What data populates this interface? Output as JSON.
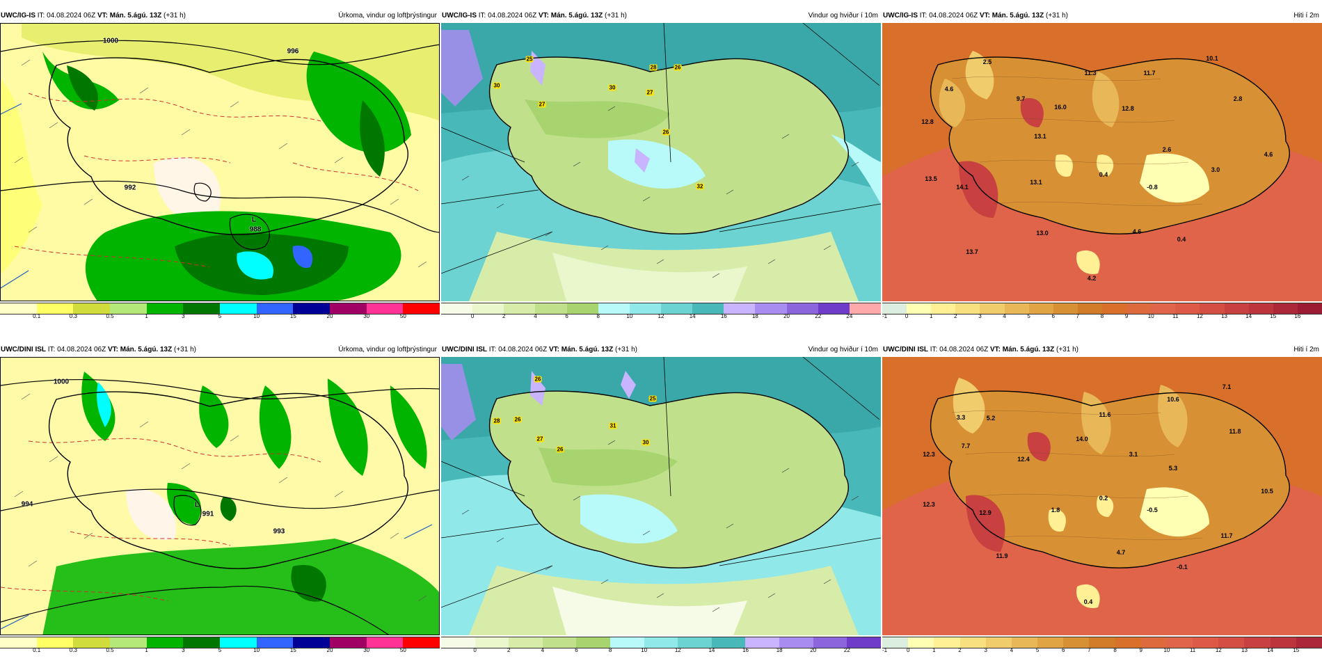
{
  "rows": [
    {
      "model": "UWC/IG-IS",
      "panels": [
        {
          "it_label": "IT:",
          "it_value": "04.08.2024 06Z",
          "vt_label": "VT:",
          "vt_value": "Mán. 5.ágú. 13Z",
          "offset": "(+31 h)",
          "title": "Úrkoma, vindur og loftþrýstingur",
          "legend": [
            "0.1",
            "0.3",
            "0.5",
            "1",
            "3",
            "5",
            "10",
            "15",
            "20",
            "30",
            "50"
          ],
          "colors": [
            "#ffffc8",
            "#ffff66",
            "#d0dc3c",
            "#b4e878",
            "#00b400",
            "#007800",
            "#00ffff",
            "#3264ff",
            "#000096",
            "#a00064",
            "#ff3296",
            "#ff0000"
          ],
          "labels": [
            {
              "t": "1000"
            },
            {
              "t": "992"
            },
            {
              "t": "988"
            },
            {
              "t": "L"
            },
            {
              "t": "996"
            }
          ]
        },
        {
          "it_label": "IT:",
          "it_value": "04.08.2024 06Z",
          "vt_label": "VT:",
          "vt_value": "Mán. 5.ágú. 13Z",
          "offset": "(+31 h)",
          "title": "Vindur og hviður í 10m",
          "legend": [
            "0",
            "2",
            "4",
            "6",
            "8",
            "10",
            "12",
            "14",
            "16",
            "18",
            "20",
            "22",
            "24"
          ],
          "colors": [
            "#f5fbe6",
            "#eaf6cc",
            "#d8ecaa",
            "#c0e08c",
            "#a8d470",
            "#b8fafa",
            "#90e8e8",
            "#6cd2d2",
            "#48b8b8",
            "#c8b4ff",
            "#a88cf0",
            "#8c64dc",
            "#6e3cc8",
            "#ffaaaa"
          ],
          "labels": [
            {
              "t": "25"
            },
            {
              "t": "30"
            },
            {
              "t": "27"
            },
            {
              "t": "30"
            },
            {
              "t": "28"
            },
            {
              "t": "26"
            },
            {
              "t": "27"
            },
            {
              "t": "26"
            },
            {
              "t": "32"
            }
          ]
        },
        {
          "it_label": "IT:",
          "it_value": "04.08.2024 06Z",
          "vt_label": "VT:",
          "vt_value": "Mán. 5.ágú. 13Z",
          "offset": "(+31 h)",
          "title": "Hiti í 2m",
          "legend": [
            "-1",
            "0",
            "1",
            "2",
            "3",
            "4",
            "5",
            "6",
            "7",
            "8",
            "9",
            "10",
            "11",
            "12",
            "13",
            "14",
            "15",
            "16"
          ],
          "colors": [
            "#dceee0",
            "#ffffb4",
            "#fff096",
            "#f8e080",
            "#f0cc6c",
            "#e8b858",
            "#e0a444",
            "#d89034",
            "#d07c28",
            "#d8702c",
            "#dc6a3c",
            "#e0644a",
            "#dc5a46",
            "#d44e44",
            "#c84040",
            "#bc343c",
            "#ac2838",
            "#9c1c34"
          ],
          "labels": [
            {
              "t": "2.5"
            },
            {
              "t": "10.1"
            },
            {
              "t": "4.6"
            },
            {
              "t": "9.7"
            },
            {
              "t": "11.3"
            },
            {
              "t": "11.7"
            },
            {
              "t": "2.8"
            },
            {
              "t": "12.8"
            },
            {
              "t": "16.0"
            },
            {
              "t": "12.8"
            },
            {
              "t": "13.1"
            },
            {
              "t": "2.6"
            },
            {
              "t": "4.6"
            },
            {
              "t": "13.5"
            },
            {
              "t": "14.1"
            },
            {
              "t": "13.1"
            },
            {
              "t": "0.4"
            },
            {
              "t": "3.0"
            },
            {
              "t": "-0.8"
            },
            {
              "t": "13.0"
            },
            {
              "t": "4.6"
            },
            {
              "t": "0.4"
            },
            {
              "t": "13.7"
            },
            {
              "t": "4.2"
            }
          ]
        }
      ]
    },
    {
      "model": "UWC/DINI ISL",
      "panels": [
        {
          "it_label": "IT:",
          "it_value": "04.08.2024 06Z",
          "vt_label": "VT:",
          "vt_value": "Mán. 5.ágú. 13Z",
          "offset": "(+31 h)",
          "title": "Úrkoma, vindur og loftþrýstingur",
          "legend": [
            "0.1",
            "0.3",
            "0.5",
            "1",
            "3",
            "5",
            "10",
            "15",
            "20",
            "30",
            "50"
          ],
          "colors": [
            "#ffffc8",
            "#ffff66",
            "#d0dc3c",
            "#b4e878",
            "#00b400",
            "#007800",
            "#00ffff",
            "#3264ff",
            "#000096",
            "#a00064",
            "#ff3296",
            "#ff0000"
          ],
          "labels": [
            {
              "t": "1000"
            },
            {
              "t": "L"
            },
            {
              "t": "991"
            },
            {
              "t": "994"
            },
            {
              "t": "993"
            }
          ]
        },
        {
          "it_label": "IT:",
          "it_value": "04.08.2024 06Z",
          "vt_label": "VT:",
          "vt_value": "Mán. 5.ágú. 13Z",
          "offset": "(+31 h)",
          "title": "Vindur og hviður í 10m",
          "legend": [
            "0",
            "2",
            "4",
            "6",
            "8",
            "10",
            "12",
            "14",
            "16",
            "18",
            "20",
            "22"
          ],
          "colors": [
            "#f5fbe6",
            "#eaf6cc",
            "#d8ecaa",
            "#c0e08c",
            "#a8d470",
            "#b8fafa",
            "#90e8e8",
            "#6cd2d2",
            "#48b8b8",
            "#c8b4ff",
            "#a88cf0",
            "#8c64dc",
            "#6e3cc8"
          ],
          "labels": [
            {
              "t": "26"
            },
            {
              "t": "28"
            },
            {
              "t": "26"
            },
            {
              "t": "27"
            },
            {
              "t": "26"
            },
            {
              "t": "25"
            },
            {
              "t": "31"
            },
            {
              "t": "30"
            }
          ]
        },
        {
          "it_label": "IT:",
          "it_value": "04.08.2024 06Z",
          "vt_label": "VT:",
          "vt_value": "Mán. 5.ágú. 13Z",
          "offset": "(+31 h)",
          "title": "Hiti í 2m",
          "legend": [
            "-1",
            "0",
            "1",
            "2",
            "3",
            "4",
            "5",
            "6",
            "7",
            "8",
            "9",
            "10",
            "11",
            "12",
            "13",
            "14",
            "15"
          ],
          "colors": [
            "#dceee0",
            "#ffffb4",
            "#fff096",
            "#f8e080",
            "#f0cc6c",
            "#e8b858",
            "#e0a444",
            "#d89034",
            "#d07c28",
            "#d8702c",
            "#dc6a3c",
            "#e0644a",
            "#dc5a46",
            "#d44e44",
            "#c84040",
            "#bc343c",
            "#ac2838"
          ],
          "labels": [
            {
              "t": "7.1"
            },
            {
              "t": "3.3"
            },
            {
              "t": "5.2"
            },
            {
              "t": "10.6"
            },
            {
              "t": "11.6"
            },
            {
              "t": "11.8"
            },
            {
              "t": "12.3"
            },
            {
              "t": "7.7"
            },
            {
              "t": "12.4"
            },
            {
              "t": "14.0"
            },
            {
              "t": "3.1"
            },
            {
              "t": "5.3"
            },
            {
              "t": "10.5"
            },
            {
              "t": "12.3"
            },
            {
              "t": "12.9"
            },
            {
              "t": "1.8"
            },
            {
              "t": "0.2"
            },
            {
              "t": "-0.5"
            },
            {
              "t": "11.7"
            },
            {
              "t": "11.9"
            },
            {
              "t": "4.7"
            },
            {
              "t": "-0.1"
            },
            {
              "t": "0.4"
            }
          ]
        }
      ]
    }
  ]
}
